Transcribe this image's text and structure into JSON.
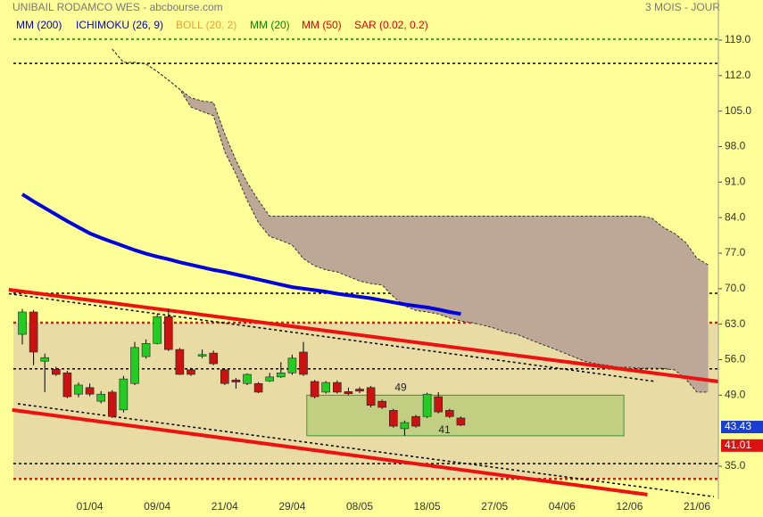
{
  "chart_data": {
    "type": "candlestick",
    "title": "UNIBAIL RODAMCO WES - abcbourse.com",
    "subtitle": "3 MOIS - JOUR",
    "legend": [
      {
        "name": "MM (200)",
        "color": "#0000cc"
      },
      {
        "name": "ICHIMOKU (26, 9)",
        "color": "#0000cc"
      },
      {
        "name": "BOLL (20, 2)",
        "color": "#f0a030"
      },
      {
        "name": "MM (20)",
        "color": "#008800"
      },
      {
        "name": "MM (50)",
        "color": "#dd0000"
      },
      {
        "name": "SAR (0.02, 0.2)",
        "color": "#dd0000"
      }
    ],
    "categories": [
      null,
      null,
      null,
      null,
      null,
      null,
      "01/04",
      null,
      null,
      null,
      null,
      null,
      "09/04",
      null,
      null,
      null,
      null,
      null,
      "21/04",
      null,
      null,
      null,
      null,
      null,
      "29/04",
      null,
      null,
      null,
      null,
      null,
      "08/05",
      null,
      null,
      null,
      null,
      null,
      "18/05",
      null,
      null,
      null,
      null,
      null,
      "27/05",
      null,
      null,
      null,
      null,
      null,
      "04/06",
      null,
      null,
      null,
      null,
      null,
      "12/06",
      null,
      null,
      null,
      null,
      null,
      "21/06",
      null
    ],
    "open": [
      61.0,
      65.4,
      55.7,
      54.1,
      53.4,
      49.2,
      50.5,
      47.8,
      49.6,
      46.1,
      51.3,
      56.6,
      59.2,
      64.5,
      58.0,
      54.0,
      56.7,
      57.3,
      54.0,
      52.0,
      51.3,
      51.3,
      51.8,
      52.6,
      53.4,
      57.5,
      51.7,
      49.6,
      51.5,
      49.7,
      50.2,
      50.5,
      47.8,
      46.0,
      42.4,
      44.8,
      44.8,
      48.7,
      46.0,
      44.5,
      null,
      null,
      null,
      null,
      null,
      null,
      null,
      null,
      null,
      null,
      null,
      null,
      null,
      null,
      null,
      null,
      null,
      null,
      null,
      null,
      null,
      null
    ],
    "high": [
      66.0,
      65.8,
      57.2,
      54.6,
      53.8,
      51.5,
      51.3,
      49.8,
      50.0,
      52.8,
      59.5,
      60.0,
      65.0,
      66.0,
      58.3,
      54.4,
      58.0,
      57.8,
      54.2,
      52.4,
      53.3,
      51.6,
      53.4,
      55.5,
      57.0,
      59.5,
      52.0,
      51.8,
      51.9,
      50.5,
      50.6,
      50.8,
      48.1,
      46.3,
      44.0,
      45.1,
      49.5,
      49.6,
      46.3,
      44.8,
      null,
      null,
      null,
      null,
      null,
      null,
      null,
      null,
      null,
      null,
      null,
      null,
      null,
      null,
      null,
      null,
      null,
      null,
      null,
      null,
      null,
      null
    ],
    "low": [
      59.0,
      54.9,
      49.6,
      52.8,
      48.4,
      48.6,
      48.8,
      47.4,
      44.5,
      45.6,
      51.0,
      56.2,
      59.0,
      57.7,
      53.0,
      52.8,
      56.3,
      54.9,
      51.0,
      50.3,
      51.0,
      49.4,
      51.6,
      52.4,
      53.0,
      52.8,
      48.4,
      49.3,
      49.3,
      49.0,
      49.4,
      46.6,
      46.3,
      42.6,
      41.0,
      42.6,
      44.5,
      45.4,
      44.5,
      42.9,
      null,
      null,
      null,
      null,
      null,
      null,
      null,
      null,
      null,
      null,
      null,
      null,
      null,
      null,
      null,
      null,
      null,
      null,
      null,
      null,
      null,
      null
    ],
    "close": [
      65.4,
      57.5,
      56.4,
      53.1,
      48.7,
      51.0,
      49.2,
      49.2,
      44.8,
      52.2,
      58.4,
      59.2,
      64.5,
      58.0,
      53.1,
      53.1,
      57.0,
      55.2,
      51.3,
      51.6,
      53.1,
      49.6,
      52.6,
      53.4,
      56.3,
      53.1,
      48.7,
      51.5,
      49.6,
      49.3,
      49.8,
      47.0,
      46.6,
      42.9,
      43.6,
      42.9,
      49.2,
      45.7,
      44.8,
      43.1,
      null,
      null,
      null,
      null,
      null,
      null,
      null,
      null,
      null,
      null,
      null,
      null,
      null,
      null,
      null,
      null,
      null,
      null,
      null,
      null,
      null,
      null
    ],
    "up_color": "#22cc22",
    "down_color": "#cc1111",
    "ma200": {
      "color": "#0000dd",
      "values": [
        88.6,
        87.2,
        85.9,
        84.6,
        83.3,
        82.1,
        80.9,
        80.0,
        79.2,
        78.4,
        77.6,
        76.9,
        76.3,
        75.8,
        75.2,
        74.7,
        74.2,
        73.7,
        73.3,
        72.8,
        72.3,
        71.8,
        71.3,
        70.8,
        70.3,
        70.0,
        69.7,
        69.4,
        69.0,
        68.7,
        68.4,
        68.1,
        67.7,
        67.3,
        66.9,
        66.6,
        66.3,
        65.9,
        65.4,
        65.0,
        null,
        null,
        null,
        null,
        null,
        null,
        null,
        null,
        null,
        null,
        null,
        null,
        null,
        null,
        null,
        null,
        null,
        null,
        null,
        null,
        null,
        null
      ]
    },
    "cloud": {
      "color": "#bda898",
      "upper": [
        null,
        null,
        null,
        null,
        null,
        null,
        null,
        null,
        117.2,
        114.6,
        114.6,
        114.3,
        112.8,
        111.1,
        109.3,
        107.6,
        107.0,
        106.7,
        100.5,
        95.3,
        90.9,
        87.4,
        84.3,
        84.3,
        84.3,
        84.3,
        84.3,
        84.3,
        84.3,
        84.3,
        84.3,
        84.3,
        84.3,
        84.3,
        84.3,
        84.3,
        84.3,
        84.3,
        84.3,
        84.3,
        84.3,
        84.3,
        84.3,
        84.3,
        84.3,
        84.3,
        84.3,
        84.3,
        84.3,
        84.3,
        84.3,
        84.3,
        84.3,
        84.3,
        84.3,
        84.3,
        83.9,
        82.1,
        80.9,
        79.1,
        76.0,
        74.7
      ],
      "lower": [
        null,
        null,
        null,
        null,
        null,
        null,
        null,
        null,
        117.2,
        114.6,
        114.6,
        114.3,
        112.8,
        111.1,
        109.3,
        105.8,
        104.9,
        104.1,
        97.0,
        92.6,
        87.4,
        83.0,
        80.3,
        79.5,
        78.6,
        75.9,
        74.5,
        73.7,
        73.3,
        72.4,
        71.5,
        71.0,
        70.7,
        68.4,
        66.6,
        65.7,
        65.4,
        65.0,
        64.2,
        63.6,
        63.3,
        62.8,
        62.2,
        61.4,
        61.0,
        60.1,
        59.2,
        58.4,
        57.5,
        56.6,
        55.7,
        55.2,
        54.9,
        54.5,
        54.5,
        54.3,
        54.3,
        54.3,
        54.0,
        52.2,
        49.6,
        49.6
      ]
    },
    "band": {
      "color": "#e8dca4",
      "top": 63.3,
      "bottom": 32.5
    },
    "levels": [
      {
        "value": 119.2,
        "color": "#22aa22",
        "dash": "3 3",
        "width": 2
      },
      {
        "value": 114.4,
        "color": "#000000",
        "dash": "3 3",
        "width": 1.5
      },
      {
        "value": 69.1,
        "color": "#000000",
        "dash": "3 3",
        "width": 1.5
      },
      {
        "value": 63.3,
        "color": "#ee1111",
        "dash": "3 3",
        "width": 2.5
      },
      {
        "value": 54.2,
        "color": "#000000",
        "dash": "3 3",
        "width": 1.5
      },
      {
        "value": 35.5,
        "color": "#000000",
        "dash": "3 3",
        "width": 1.5
      },
      {
        "value": 32.5,
        "color": "#ee1111",
        "dash": "3 3",
        "width": 2.5
      }
    ],
    "trendlines": [
      {
        "start": [
          -1.2,
          69.8
        ],
        "end": [
          61.9,
          51.7
        ],
        "color": "#ee1111",
        "width": 4,
        "dash": "none"
      },
      {
        "start": [
          -0.9,
          46.1
        ],
        "end": [
          55.6,
          29.4
        ],
        "color": "#ee1111",
        "width": 4,
        "dash": "none"
      },
      {
        "start": [
          -1.2,
          69.0
        ],
        "end": [
          56.3,
          51.7
        ],
        "color": "#000000",
        "width": 1.5,
        "dash": "3 3"
      },
      {
        "start": [
          -0.4,
          47.3
        ],
        "end": [
          61.5,
          29.0
        ],
        "color": "#000000",
        "width": 1.5,
        "dash": "3 3"
      }
    ],
    "box": {
      "start": 25.3,
      "end": 53.5,
      "top": 49,
      "bottom": 41,
      "color": "#b8cc7a",
      "stroke": "#339933"
    },
    "price_tags": [
      {
        "value": 43.43,
        "color": "#1a3fd0"
      },
      {
        "value": 41.01,
        "color": "#dd1111"
      }
    ],
    "ylim": [
      28.5,
      126.9
    ],
    "yticks": [
      {
        "value": 119,
        "label": "119.0"
      },
      {
        "value": 112,
        "label": "112.0"
      },
      {
        "value": 105,
        "label": "105.0"
      },
      {
        "value": 98,
        "label": "98.0"
      },
      {
        "value": 91,
        "label": "91.0"
      },
      {
        "value": 84,
        "label": "84.0"
      },
      {
        "value": 77,
        "label": "77.0"
      },
      {
        "value": 70,
        "label": "70.0"
      },
      {
        "value": 63,
        "label": "63.0"
      },
      {
        "value": 56,
        "label": "56.0"
      },
      {
        "value": 49,
        "label": "49.0"
      },
      {
        "value": 35,
        "label": "35.0"
      }
    ]
  }
}
